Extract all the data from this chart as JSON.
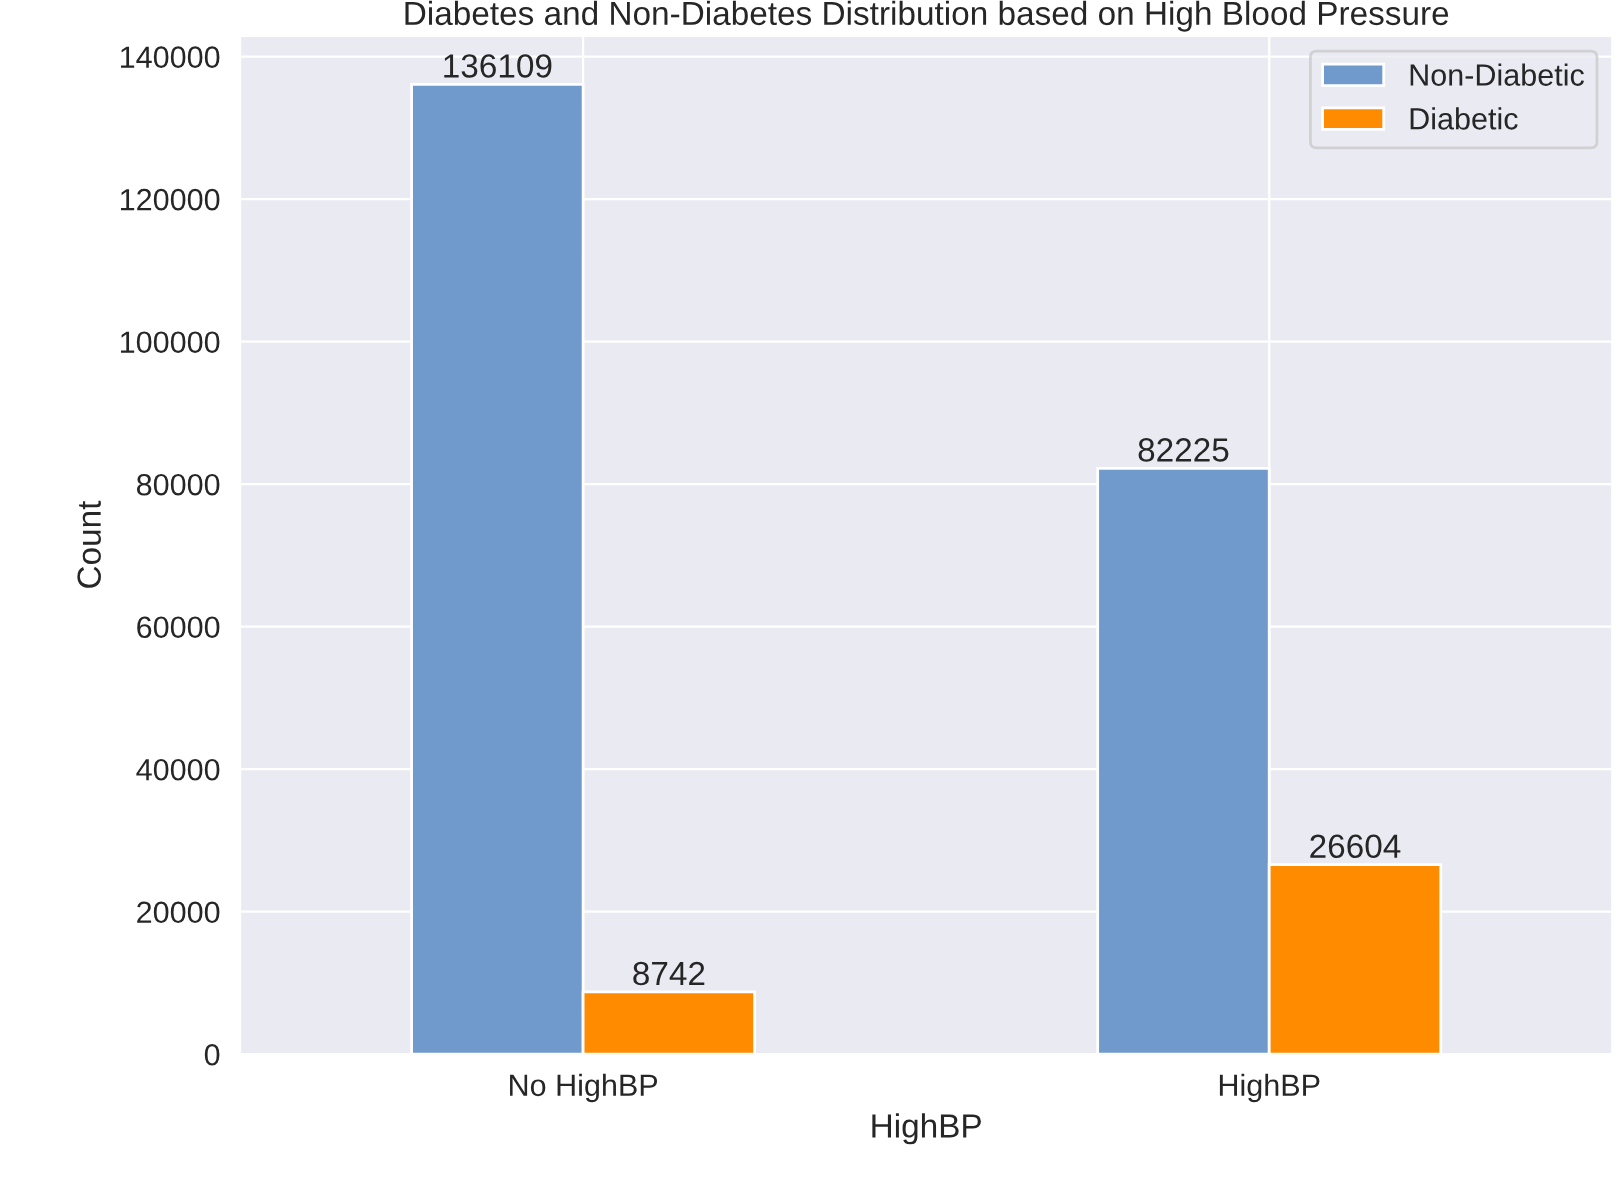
{
  "chart_data": {
    "type": "bar",
    "title": "Diabetes and Non-Diabetes Distribution based on High Blood Pressure",
    "xlabel": "HighBP",
    "ylabel": "Count",
    "categories": [
      "No HighBP",
      "HighBP"
    ],
    "series": [
      {
        "name": "Non-Diabetic",
        "color": "#7099cc",
        "values": [
          136109,
          82225
        ]
      },
      {
        "name": "Diabetic",
        "color": "#ff8c00",
        "values": [
          8742,
          26604
        ]
      }
    ],
    "data_labels": true,
    "ylim": [
      0,
      142900
    ],
    "yticks": [
      0,
      20000,
      40000,
      60000,
      80000,
      100000,
      120000,
      140000
    ],
    "grid": true,
    "legend": "top right"
  }
}
